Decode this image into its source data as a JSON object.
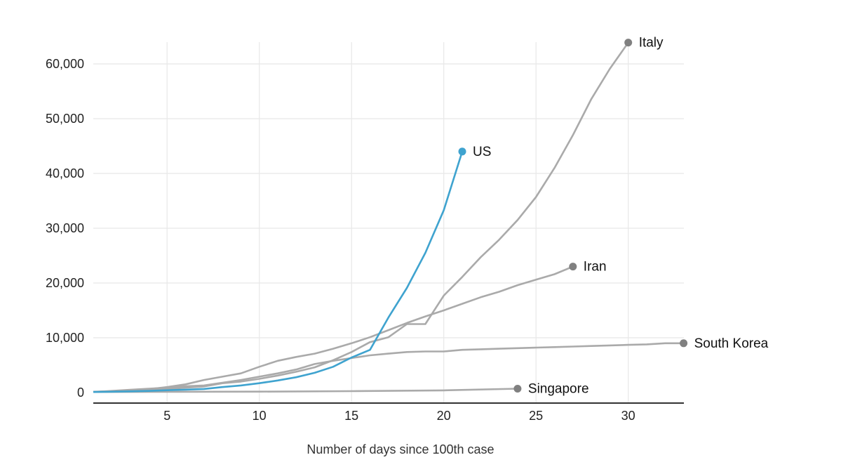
{
  "chart_data": {
    "type": "line",
    "title": "",
    "xlabel": "Number of days since 100th case",
    "ylabel": "",
    "xlim": [
      1,
      33
    ],
    "ylim": [
      0,
      60000
    ],
    "xticks": [
      5,
      10,
      15,
      20,
      25,
      30
    ],
    "yticks": [
      0,
      10000,
      20000,
      30000,
      40000,
      50000,
      60000
    ],
    "ytick_labels": [
      "0",
      "10,000",
      "20,000",
      "30,000",
      "40,000",
      "50,000",
      "60,000"
    ],
    "grid": true,
    "series": [
      {
        "name": "Italy",
        "color": "#aaaaaa",
        "dot_color": "#808080",
        "x": [
          1,
          2,
          3,
          4,
          5,
          6,
          7,
          8,
          9,
          10,
          11,
          12,
          13,
          14,
          15,
          16,
          17,
          18,
          19,
          20,
          21,
          22,
          23,
          24,
          25,
          26,
          27,
          28,
          29,
          30
        ],
        "values": [
          150,
          230,
          320,
          450,
          650,
          890,
          1100,
          1700,
          2000,
          2500,
          3100,
          3800,
          4600,
          5900,
          7400,
          9200,
          10100,
          12500,
          12500,
          17700,
          21100,
          24700,
          27900,
          31500,
          35700,
          41000,
          47000,
          53600,
          59100,
          63900
        ]
      },
      {
        "name": "Iran",
        "color": "#aaaaaa",
        "dot_color": "#808080",
        "x": [
          1,
          2,
          3,
          4,
          5,
          6,
          7,
          8,
          9,
          10,
          11,
          12,
          13,
          14,
          15,
          16,
          17,
          18,
          19,
          20,
          21,
          22,
          23,
          24,
          25,
          26,
          27
        ],
        "values": [
          100,
          250,
          400,
          600,
          1000,
          1500,
          2300,
          2900,
          3500,
          4700,
          5800,
          6500,
          7100,
          8000,
          9000,
          10100,
          11400,
          12700,
          13900,
          15000,
          16200,
          17400,
          18400,
          19600,
          20600,
          21600,
          23000
        ]
      },
      {
        "name": "South Korea",
        "color": "#aaaaaa",
        "dot_color": "#808080",
        "x": [
          1,
          2,
          3,
          4,
          5,
          6,
          7,
          8,
          9,
          10,
          11,
          12,
          13,
          14,
          15,
          16,
          17,
          18,
          19,
          20,
          21,
          22,
          23,
          24,
          25,
          26,
          27,
          28,
          29,
          30,
          31,
          32,
          33
        ],
        "values": [
          100,
          300,
          500,
          700,
          900,
          1150,
          1300,
          1800,
          2300,
          2900,
          3500,
          4200,
          5200,
          5800,
          6300,
          6800,
          7100,
          7400,
          7500,
          7500,
          7800,
          7900,
          8000,
          8100,
          8200,
          8300,
          8400,
          8500,
          8600,
          8700,
          8800,
          9000,
          9000
        ]
      },
      {
        "name": "Singapore",
        "color": "#aaaaaa",
        "dot_color": "#808080",
        "x": [
          1,
          5,
          10,
          15,
          20,
          24
        ],
        "values": [
          100,
          130,
          170,
          250,
          400,
          700
        ]
      },
      {
        "name": "US",
        "color": "#3fa3cf",
        "dot_color": "#3fa3cf",
        "x": [
          1,
          2,
          3,
          4,
          5,
          6,
          7,
          8,
          9,
          10,
          11,
          12,
          13,
          14,
          15,
          16,
          17,
          18,
          19,
          20,
          21
        ],
        "values": [
          100,
          150,
          220,
          300,
          420,
          520,
          650,
          1000,
          1300,
          1700,
          2200,
          2800,
          3600,
          4700,
          6400,
          7800,
          13700,
          19100,
          25500,
          33300,
          44000
        ]
      }
    ]
  }
}
